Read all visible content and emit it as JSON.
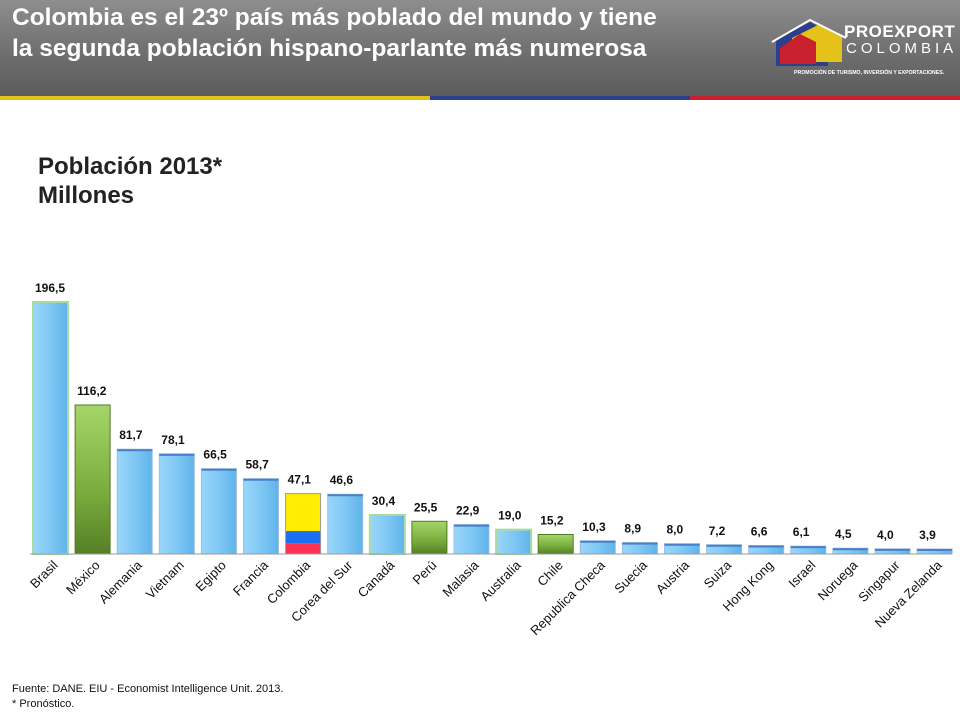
{
  "header": {
    "title_line1": "Colombia es el 23º país más poblado del mundo y tiene",
    "title_line2": "la segunda población hispano-parlante más numerosa"
  },
  "logo": {
    "name": "PROEXPORT",
    "country": "COLOMBIA",
    "tagline": "PROMOCIÓN DE TURISMO, INVERSIÓN Y EXPORTACIONES."
  },
  "colors": {
    "strip": [
      "#e4c21a",
      "#2b3f8c",
      "#c8202e"
    ],
    "bar_blue": "#7fc8f5",
    "bar_blue_top": "#4a7ec8",
    "bar_green": "#6ea531",
    "bar_light_green": "#a9dba0",
    "flag_yellow": "#ffee00",
    "flag_blue": "#1e6ef0",
    "flag_red": "#ff3050"
  },
  "chart_data": {
    "type": "bar",
    "title": "Población 2013*",
    "subtitle": "Millones",
    "xlabel": "",
    "ylabel": "",
    "ylim": [
      0,
      196.5
    ],
    "grid": false,
    "categories": [
      "Brasil",
      "México",
      "Alemania",
      "Vietnam",
      "Egipto",
      "Francia",
      "Colombia",
      "Corea del Sur",
      "Canadá",
      "Perú",
      "Malasia",
      "Australia",
      "Chile",
      "Republica Checa",
      "Suecia",
      "Austria",
      "Suiza",
      "Hong Kong",
      "Israel",
      "Noruega",
      "Singapur",
      "Nueva Zelanda"
    ],
    "values": [
      196.5,
      116.2,
      81.7,
      78.1,
      66.5,
      58.7,
      47.1,
      46.6,
      30.4,
      25.5,
      22.9,
      19.0,
      15.2,
      10.3,
      8.9,
      8.0,
      7.2,
      6.6,
      6.1,
      4.5,
      4.0,
      3.9
    ],
    "value_labels": [
      "196,5",
      "116,2",
      "81,7",
      "78,1",
      "66,5",
      "58,7",
      "47,1",
      "46,6",
      "30,4",
      "25,5",
      "22,9",
      "19,0",
      "15,2",
      "10,3",
      "8,9",
      "8,0",
      "7,2",
      "6,6",
      "6,1",
      "4,5",
      "4,0",
      "3,9"
    ],
    "bar_styles": [
      "light-green-outline",
      "green",
      "blue",
      "blue",
      "blue",
      "blue",
      "flag",
      "blue",
      "light-green-outline",
      "green",
      "blue",
      "light-green-outline",
      "green",
      "blue",
      "blue",
      "blue",
      "blue",
      "blue",
      "blue",
      "blue",
      "blue",
      "blue"
    ]
  },
  "footer": {
    "source": "Fuente: DANE. EIU - Economist Intelligence Unit. 2013.",
    "note": "* Pronóstico."
  }
}
